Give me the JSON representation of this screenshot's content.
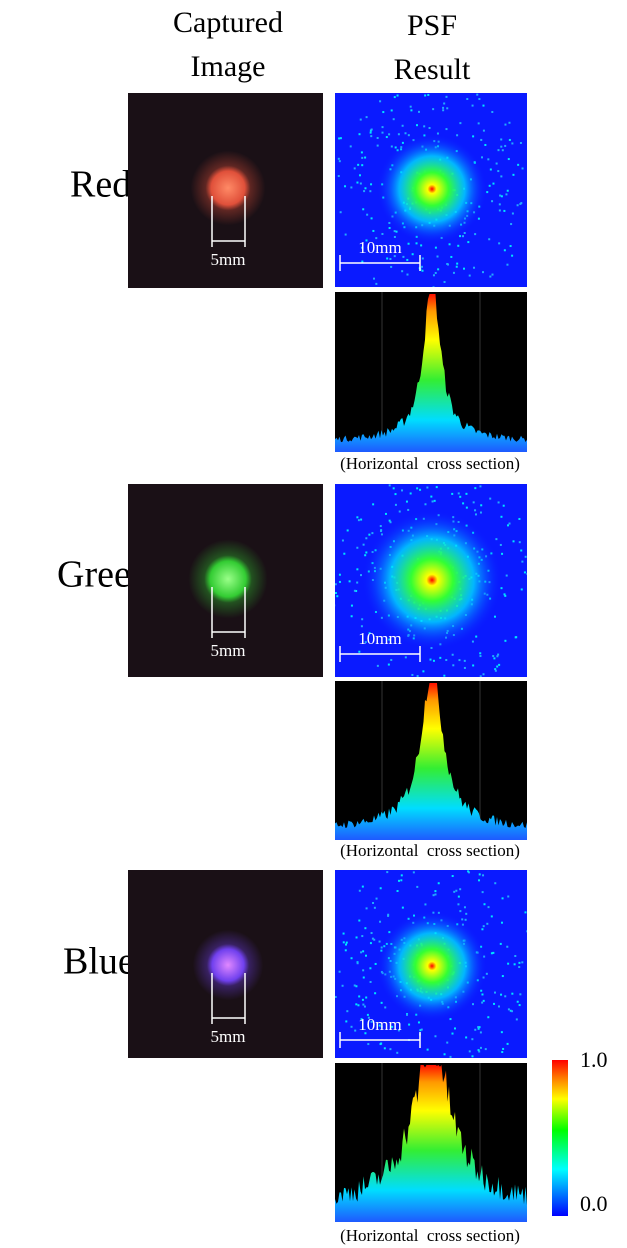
{
  "header": {
    "captured": [
      "Captured",
      "Image"
    ],
    "psf": [
      "PSF",
      "Result"
    ]
  },
  "rows": [
    {
      "label": "Red",
      "captured_scale": "5mm",
      "psf_scale": "10mm",
      "caption": "(Horizontal  cross section)"
    },
    {
      "label": "Green",
      "captured_scale": "5mm",
      "psf_scale": "10mm",
      "caption": "(Horizontal  cross section)"
    },
    {
      "label": "Blue",
      "captured_scale": "5mm",
      "psf_scale": "10mm",
      "caption": "(Horizontal  cross section)"
    }
  ],
  "colorbar": {
    "max": "1.0",
    "min": "0.0"
  }
}
